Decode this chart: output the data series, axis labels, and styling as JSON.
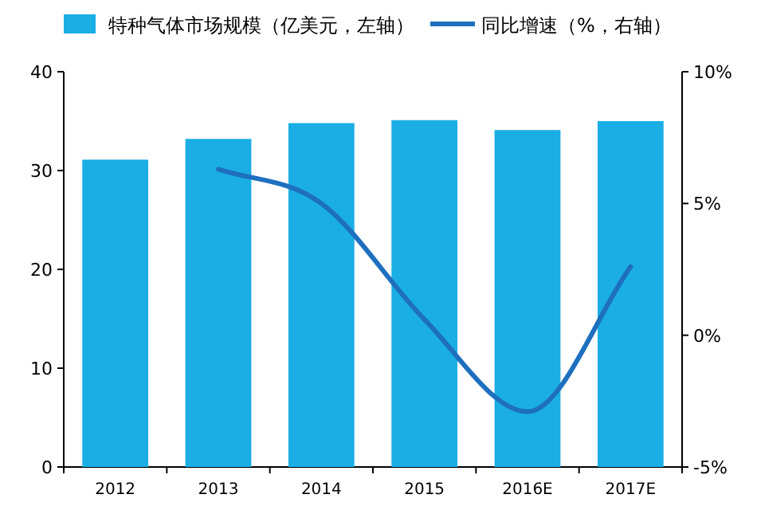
{
  "chart_data": {
    "type": "bar",
    "categories": [
      "2012",
      "2013",
      "2014",
      "2015",
      "2016E",
      "2017E"
    ],
    "series": [
      {
        "name": "特种气体市场规模（亿美元，左轴）",
        "color": "#1aaee5",
        "values": [
          31.1,
          33.2,
          34.8,
          35.1,
          34.1,
          35.0
        ]
      },
      {
        "name": "同比增速（%，右轴）",
        "type": "line",
        "axis": "y2",
        "color": "#1f6fbf",
        "values": [
          null,
          6.3,
          5.0,
          0.6,
          -2.9,
          2.6
        ]
      }
    ],
    "ylim": [
      0,
      40
    ],
    "yticks": [
      0,
      10,
      20,
      30,
      40
    ],
    "y2lim": [
      -5,
      10
    ],
    "y2ticks": [
      {
        "value": -5,
        "label": "-5%"
      },
      {
        "value": 0,
        "label": "0%"
      },
      {
        "value": 5,
        "label": "5%"
      },
      {
        "value": 10,
        "label": "10%"
      }
    ],
    "legend": "top"
  }
}
